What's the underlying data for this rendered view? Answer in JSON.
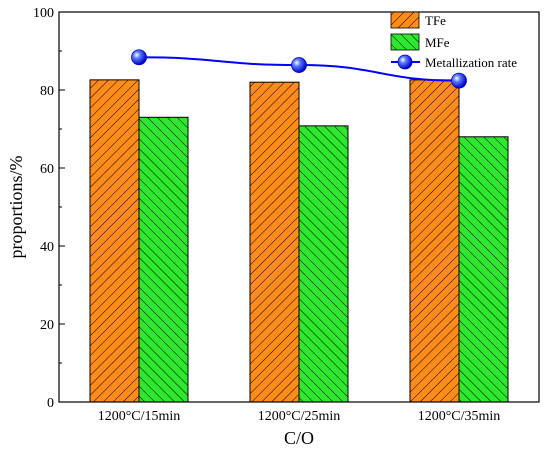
{
  "chart_data": {
    "type": "bar",
    "categories": [
      "1200°C/15min",
      "1200°C/25min",
      "1200°C/35min"
    ],
    "series": [
      {
        "name": "TFe",
        "values": [
          82.6,
          82.0,
          82.6
        ],
        "color": "#ff8c1a",
        "pattern": "diagonal-up"
      },
      {
        "name": "MFe",
        "values": [
          73.0,
          70.8,
          68.0
        ],
        "color": "#2ee82e",
        "pattern": "diagonal-down"
      }
    ],
    "line_series": [
      {
        "name": "Metallization rate",
        "values": [
          88.4,
          86.4,
          82.4
        ],
        "color": "#0000ff"
      }
    ],
    "xlabel": "C/O",
    "ylabel": "proportions/%",
    "ylim": [
      0,
      100
    ],
    "yticks": [
      0,
      20,
      40,
      60,
      80,
      100
    ],
    "grid": false,
    "legend_position": "top-right"
  }
}
